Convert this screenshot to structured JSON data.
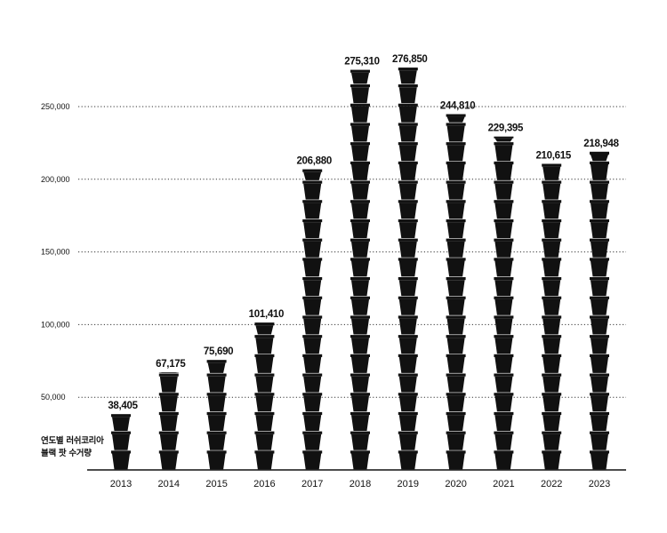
{
  "caption": {
    "line1": "연도별 러쉬코리아",
    "line2": "블랙 팟 수거량"
  },
  "chart_data": {
    "type": "bar",
    "title": "",
    "xlabel": "",
    "ylabel": "연도별 러쉬코리아 블랙 팟 수거량",
    "categories": [
      "2013",
      "2014",
      "2015",
      "2016",
      "2017",
      "2018",
      "2019",
      "2020",
      "2021",
      "2022",
      "2023"
    ],
    "values": [
      38405,
      67175,
      75690,
      101410,
      206880,
      275310,
      276850,
      244810,
      229395,
      210615,
      218948
    ],
    "data_labels": [
      "38,405",
      "67,175",
      "75,690",
      "101,410",
      "206,880",
      "275,310",
      "276,850",
      "244,810",
      "229,395",
      "210,615",
      "218,948"
    ],
    "yticks": [
      50000,
      100000,
      150000,
      200000,
      250000
    ],
    "ytick_labels": [
      "50,000",
      "100,000",
      "150,000",
      "200,000",
      "250,000"
    ],
    "ylim": [
      0,
      275000
    ],
    "grid": true,
    "bar_color": "#111111",
    "mark_style": "stacked-pot-icons"
  }
}
